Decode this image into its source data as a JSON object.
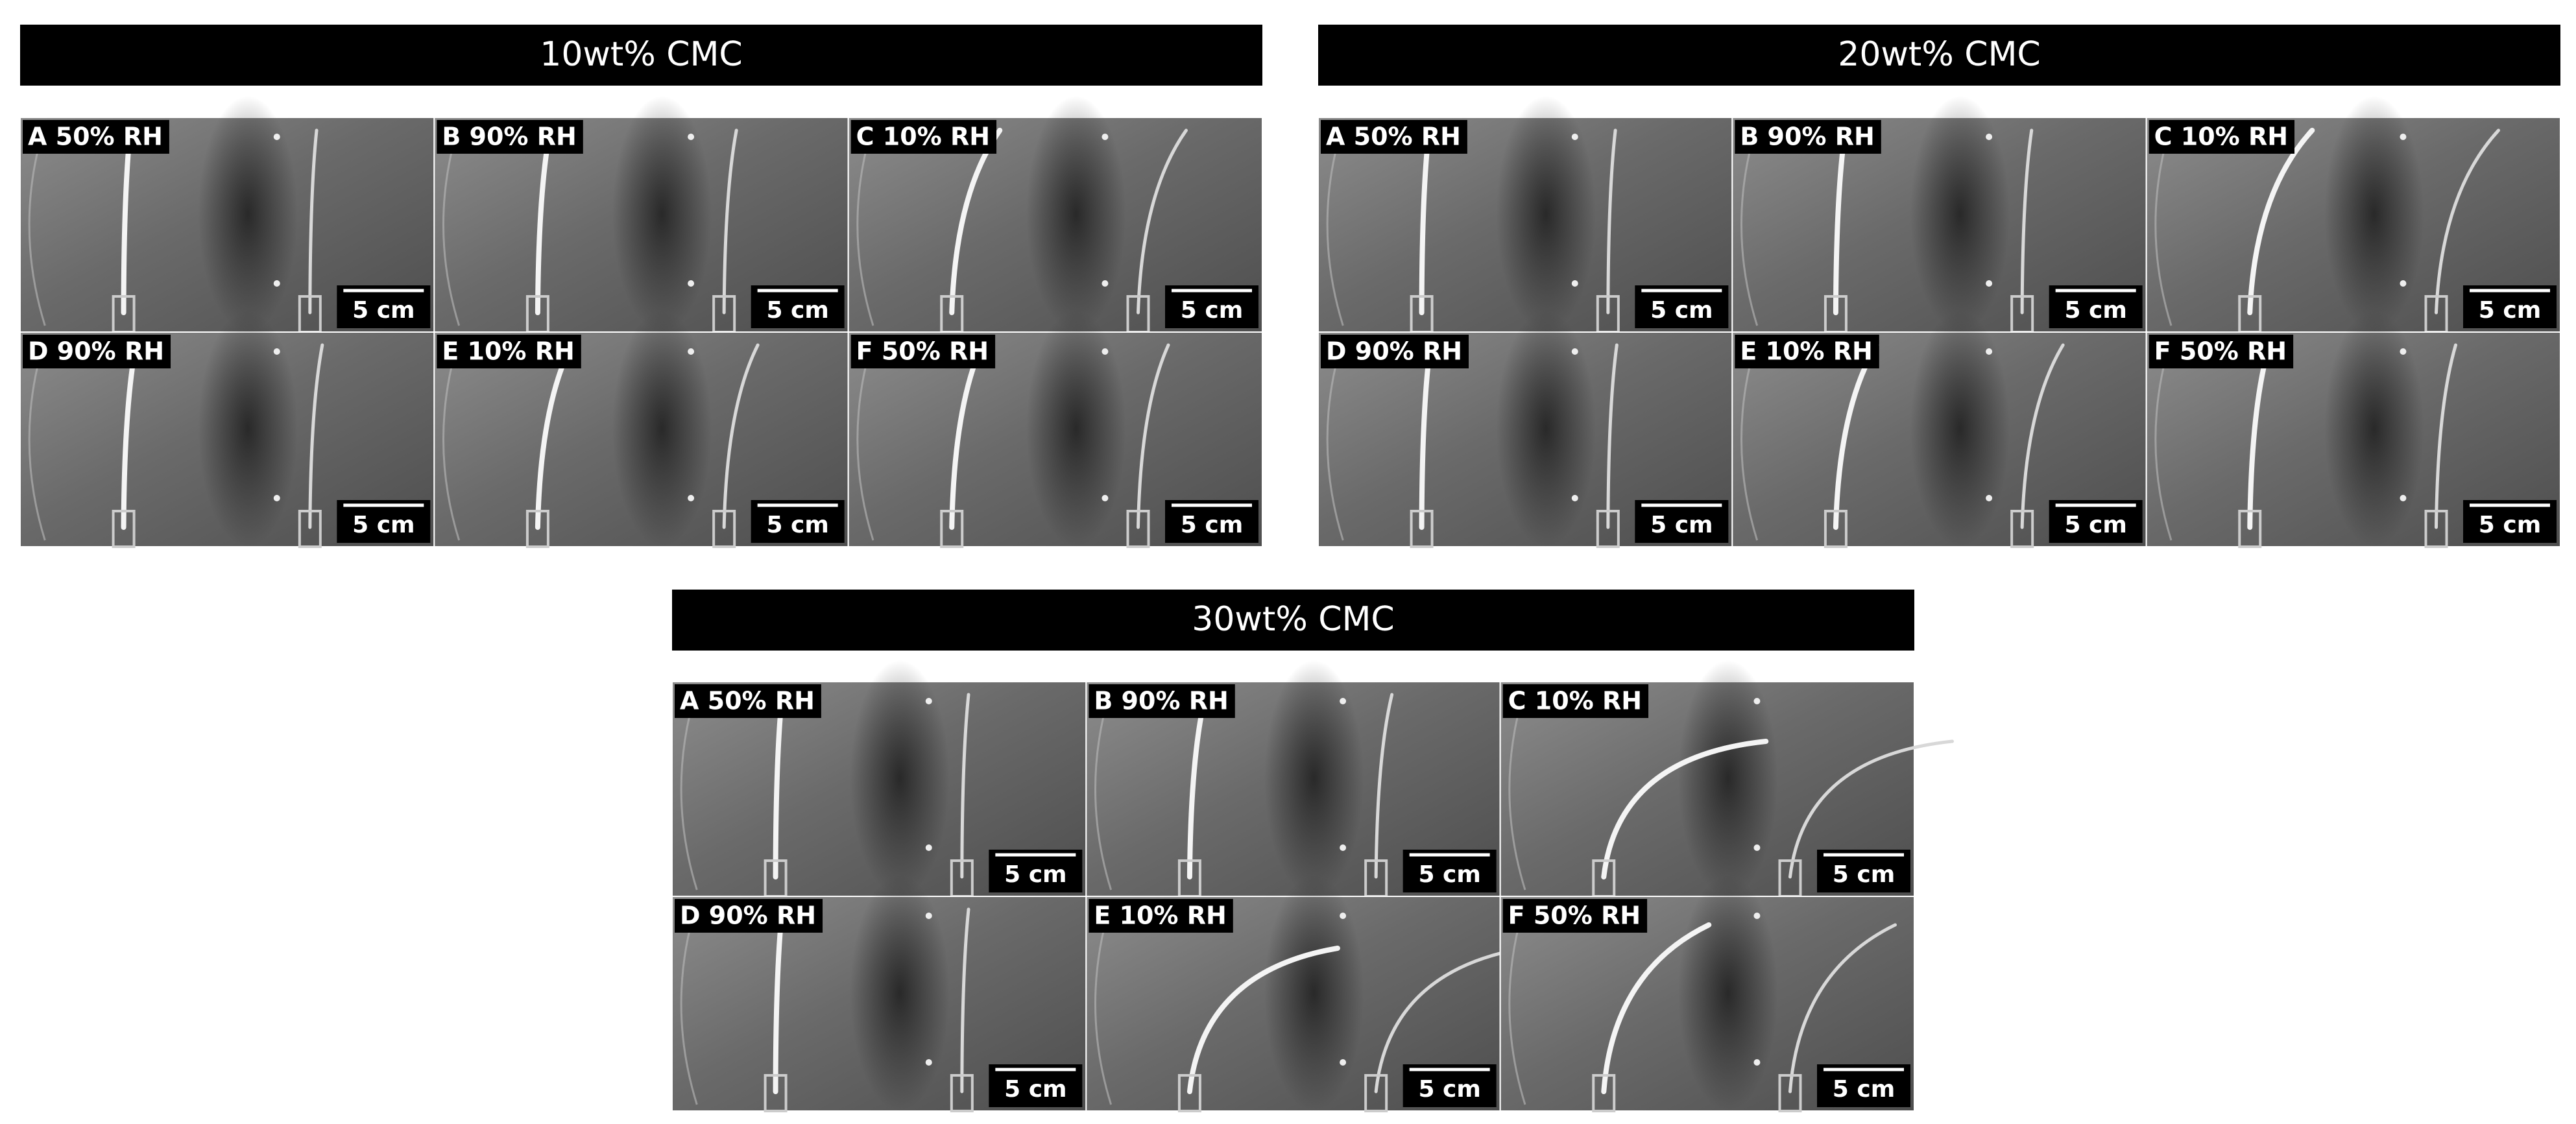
{
  "groups": [
    {
      "title": "10wt% CMC",
      "panels": [
        {
          "label": "A 50% RH",
          "scale": "5 cm"
        },
        {
          "label": "B 90% RH",
          "scale": "5 cm"
        },
        {
          "label": "C 10% RH",
          "scale": "5 cm"
        },
        {
          "label": "D 90% RH",
          "scale": "5 cm"
        },
        {
          "label": "E 10% RH",
          "scale": "5 cm"
        },
        {
          "label": "F 50% RH",
          "scale": "5 cm"
        }
      ]
    },
    {
      "title": "20wt% CMC",
      "panels": [
        {
          "label": "A 50% RH",
          "scale": "5 cm"
        },
        {
          "label": "B 90% RH",
          "scale": "5 cm"
        },
        {
          "label": "C 10% RH",
          "scale": "5 cm"
        },
        {
          "label": "D 90% RH",
          "scale": "5 cm"
        },
        {
          "label": "E 10% RH",
          "scale": "5 cm"
        },
        {
          "label": "F 50% RH",
          "scale": "5 cm"
        }
      ]
    },
    {
      "title": "30wt% CMC",
      "panels": [
        {
          "label": "A 50% RH",
          "scale": "5 cm"
        },
        {
          "label": "B 90% RH",
          "scale": "5 cm"
        },
        {
          "label": "C 10% RH",
          "scale": "5 cm"
        },
        {
          "label": "D 90% RH",
          "scale": "5 cm"
        },
        {
          "label": "E 10% RH",
          "scale": "5 cm"
        },
        {
          "label": "F 50% RH",
          "scale": "5 cm"
        }
      ]
    }
  ]
}
